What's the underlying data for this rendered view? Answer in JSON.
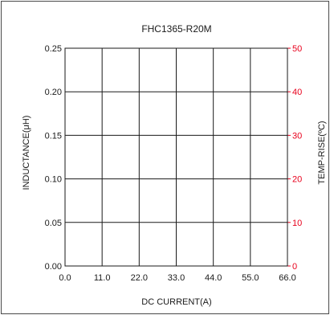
{
  "chart_data": {
    "type": "line",
    "title": "FHC1365-R20M",
    "xlabel": "DC CURRENT(A)",
    "ylabel": "INDUCTANCE(μH)",
    "y2label": "TEMP-RISE(ºC)",
    "xlim": [
      0,
      66
    ],
    "ylim": [
      0,
      0.25
    ],
    "y2lim": [
      0,
      50
    ],
    "x_ticks": [
      "0.0",
      "11.0",
      "22.0",
      "33.0",
      "44.0",
      "55.0",
      "66.0"
    ],
    "y_ticks": [
      "0.00",
      "0.05",
      "0.10",
      "0.15",
      "0.20",
      "0.25"
    ],
    "y2_ticks": [
      "0",
      "10",
      "20",
      "30",
      "40",
      "50"
    ],
    "grid": true,
    "series": []
  },
  "colors": {
    "axis": "#1a1a1a",
    "grid": "#1a1a1a",
    "right_axis": "#e8001c",
    "frame": "#4a4a4a"
  }
}
